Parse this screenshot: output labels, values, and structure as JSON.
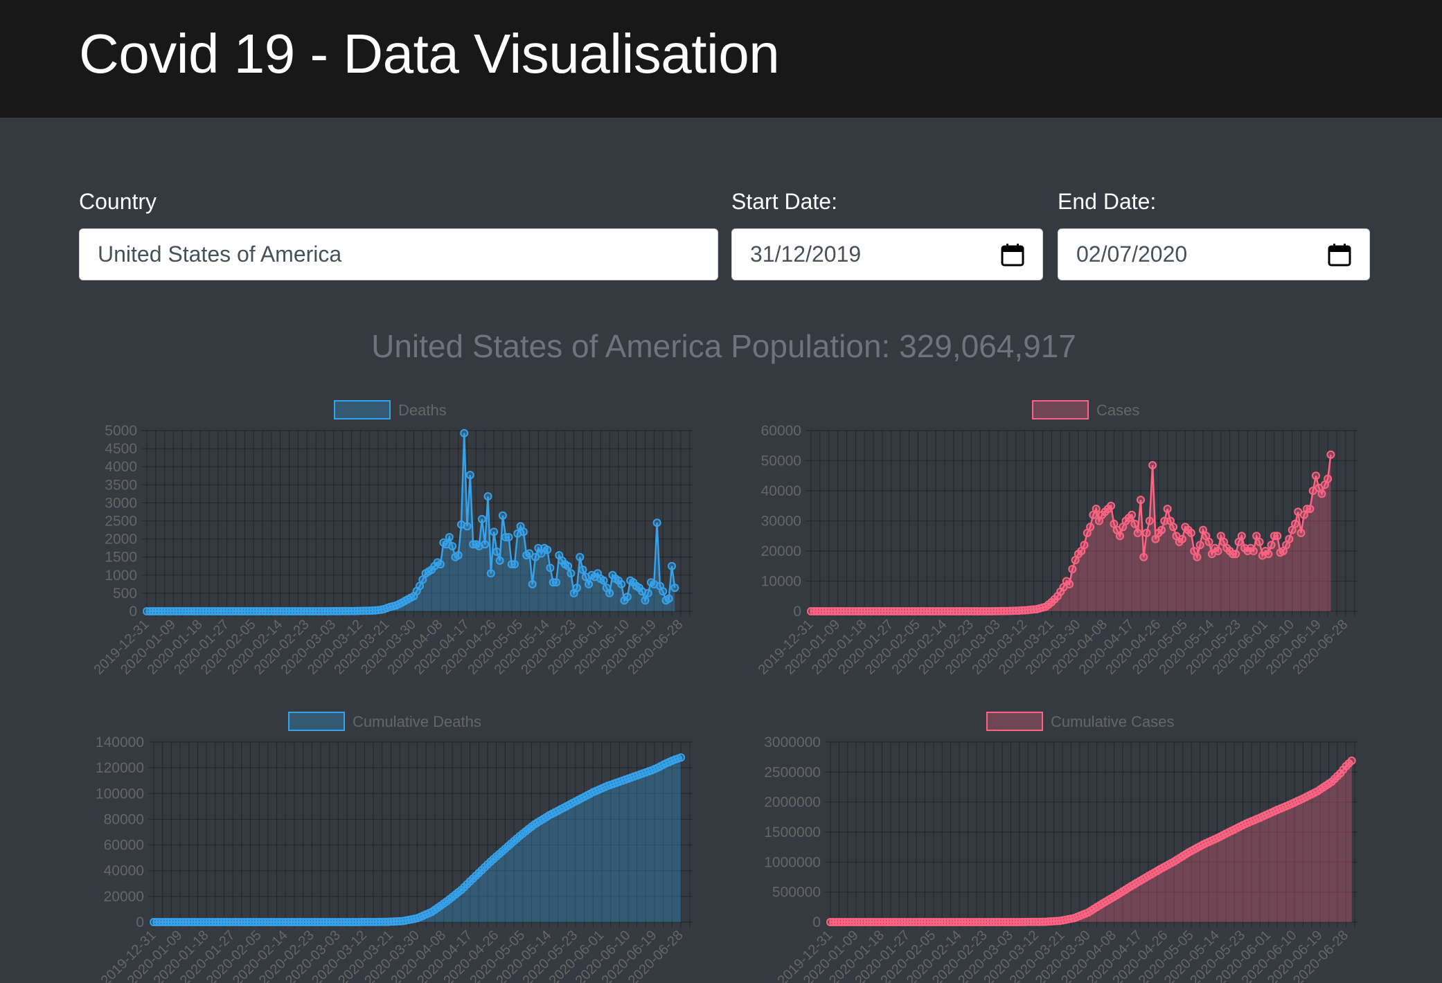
{
  "header": {
    "title": "Covid 19 - Data Visualisation"
  },
  "form": {
    "country_label": "Country",
    "country_value": "United States of America",
    "start_label": "Start Date:",
    "start_value": "31/12/2019",
    "end_label": "End Date:",
    "end_value": "02/07/2020",
    "calendar_icon": "calendar-icon"
  },
  "population_text": "United States of America Population: 329,064,917",
  "colors": {
    "page_bg": "#343a40",
    "navbar_bg": "#181818",
    "deaths": "#36a2eb",
    "cases": "#ff6384",
    "muted_text": "#6c757d"
  },
  "chart_data": [
    {
      "type": "line",
      "legend": "Deaths",
      "color": "#36a2eb",
      "ylim": [
        0,
        5000
      ],
      "yticks": [
        0,
        500,
        1000,
        1500,
        2000,
        2500,
        3000,
        3500,
        4000,
        4500,
        5000
      ],
      "xticks": [
        "2019-12-31",
        "2020-01-09",
        "2020-01-18",
        "2020-01-27",
        "2020-02-05",
        "2020-02-14",
        "2020-02-23",
        "2020-03-03",
        "2020-03-12",
        "2020-03-21",
        "2020-03-30",
        "2020-04-08",
        "2020-04-17",
        "2020-04-26",
        "2020-05-05",
        "2020-05-14",
        "2020-05-23",
        "2020-06-01",
        "2020-06-10",
        "2020-06-19",
        "2020-06-28"
      ],
      "grid": true,
      "fill": true,
      "legend_position": "top",
      "points": [
        [
          "2019-12-31",
          0
        ],
        [
          "2020-02-29",
          0
        ],
        [
          "2020-03-10",
          5
        ],
        [
          "2020-03-15",
          15
        ],
        [
          "2020-03-18",
          30
        ],
        [
          "2020-03-20",
          60
        ],
        [
          "2020-03-22",
          120
        ],
        [
          "2020-03-24",
          160
        ],
        [
          "2020-03-26",
          240
        ],
        [
          "2020-03-28",
          330
        ],
        [
          "2020-03-30",
          420
        ],
        [
          "2020-04-01",
          700
        ],
        [
          "2020-04-03",
          1050
        ],
        [
          "2020-04-05",
          1150
        ],
        [
          "2020-04-07",
          1350
        ],
        [
          "2020-04-08",
          1300
        ],
        [
          "2020-04-09",
          1900
        ],
        [
          "2020-04-10",
          1850
        ],
        [
          "2020-04-11",
          2050
        ],
        [
          "2020-04-12",
          1800
        ],
        [
          "2020-04-13",
          1500
        ],
        [
          "2020-04-14",
          1550
        ],
        [
          "2020-04-15",
          2400
        ],
        [
          "2020-04-16",
          4930
        ],
        [
          "2020-04-17",
          2350
        ],
        [
          "2020-04-18",
          3770
        ],
        [
          "2020-04-19",
          1850
        ],
        [
          "2020-04-20",
          1850
        ],
        [
          "2020-04-21",
          1800
        ],
        [
          "2020-04-22",
          2550
        ],
        [
          "2020-04-23",
          1850
        ],
        [
          "2020-04-24",
          3180
        ],
        [
          "2020-04-25",
          1050
        ],
        [
          "2020-04-26",
          2200
        ],
        [
          "2020-04-27",
          1650
        ],
        [
          "2020-04-28",
          1400
        ],
        [
          "2020-04-29",
          2650
        ],
        [
          "2020-04-30",
          2050
        ],
        [
          "2020-05-01",
          2050
        ],
        [
          "2020-05-02",
          1300
        ],
        [
          "2020-05-03",
          1300
        ],
        [
          "2020-05-04",
          2150
        ],
        [
          "2020-05-05",
          2350
        ],
        [
          "2020-05-06",
          2200
        ],
        [
          "2020-05-07",
          1550
        ],
        [
          "2020-05-08",
          1600
        ],
        [
          "2020-05-09",
          750
        ],
        [
          "2020-05-10",
          1500
        ],
        [
          "2020-05-11",
          1750
        ],
        [
          "2020-05-12",
          1600
        ],
        [
          "2020-05-13",
          1750
        ],
        [
          "2020-05-14",
          1700
        ],
        [
          "2020-05-15",
          1200
        ],
        [
          "2020-05-16",
          800
        ],
        [
          "2020-05-17",
          800
        ],
        [
          "2020-05-18",
          1550
        ],
        [
          "2020-05-19",
          1400
        ],
        [
          "2020-05-20",
          1300
        ],
        [
          "2020-05-21",
          1250
        ],
        [
          "2020-05-22",
          1050
        ],
        [
          "2020-05-23",
          500
        ],
        [
          "2020-05-24",
          650
        ],
        [
          "2020-05-25",
          1500
        ],
        [
          "2020-05-26",
          1150
        ],
        [
          "2020-05-27",
          950
        ],
        [
          "2020-05-28",
          750
        ],
        [
          "2020-05-29",
          1000
        ],
        [
          "2020-05-30",
          950
        ],
        [
          "2020-05-31",
          1050
        ],
        [
          "2020-06-01",
          900
        ],
        [
          "2020-06-02",
          850
        ],
        [
          "2020-06-03",
          650
        ],
        [
          "2020-06-04",
          500
        ],
        [
          "2020-06-05",
          1000
        ],
        [
          "2020-06-06",
          900
        ],
        [
          "2020-06-07",
          850
        ],
        [
          "2020-06-08",
          750
        ],
        [
          "2020-06-09",
          300
        ],
        [
          "2020-06-10",
          400
        ],
        [
          "2020-06-11",
          850
        ],
        [
          "2020-06-12",
          800
        ],
        [
          "2020-06-13",
          700
        ],
        [
          "2020-06-14",
          650
        ],
        [
          "2020-06-15",
          550
        ],
        [
          "2020-06-16",
          300
        ],
        [
          "2020-06-17",
          500
        ],
        [
          "2020-06-18",
          800
        ],
        [
          "2020-06-19",
          750
        ],
        [
          "2020-06-20",
          2450
        ],
        [
          "2020-06-21",
          700
        ],
        [
          "2020-06-22",
          550
        ],
        [
          "2020-06-23",
          300
        ],
        [
          "2020-06-24",
          350
        ],
        [
          "2020-06-25",
          1250
        ],
        [
          "2020-06-26",
          650
        ]
      ]
    },
    {
      "type": "line",
      "legend": "Cases",
      "color": "#ff6384",
      "ylim": [
        0,
        60000
      ],
      "yticks": [
        0,
        10000,
        20000,
        30000,
        40000,
        50000,
        60000
      ],
      "xticks": [
        "2019-12-31",
        "2020-01-09",
        "2020-01-18",
        "2020-01-27",
        "2020-02-05",
        "2020-02-14",
        "2020-02-23",
        "2020-03-03",
        "2020-03-12",
        "2020-03-21",
        "2020-03-30",
        "2020-04-08",
        "2020-04-17",
        "2020-04-26",
        "2020-05-05",
        "2020-05-14",
        "2020-05-23",
        "2020-06-01",
        "2020-06-10",
        "2020-06-19",
        "2020-06-28"
      ],
      "grid": true,
      "fill": true,
      "legend_position": "top",
      "points": [
        [
          "2019-12-31",
          0
        ],
        [
          "2020-02-29",
          0
        ],
        [
          "2020-03-05",
          50
        ],
        [
          "2020-03-10",
          200
        ],
        [
          "2020-03-13",
          400
        ],
        [
          "2020-03-16",
          700
        ],
        [
          "2020-03-19",
          1500
        ],
        [
          "2020-03-21",
          3000
        ],
        [
          "2020-03-23",
          5000
        ],
        [
          "2020-03-25",
          8000
        ],
        [
          "2020-03-26",
          10000
        ],
        [
          "2020-03-27",
          9000
        ],
        [
          "2020-03-28",
          14000
        ],
        [
          "2020-03-29",
          17000
        ],
        [
          "2020-03-30",
          19000
        ],
        [
          "2020-03-31",
          20000
        ],
        [
          "2020-04-01",
          22000
        ],
        [
          "2020-04-02",
          26000
        ],
        [
          "2020-04-03",
          28000
        ],
        [
          "2020-04-04",
          32000
        ],
        [
          "2020-04-05",
          34000
        ],
        [
          "2020-04-06",
          30000
        ],
        [
          "2020-04-07",
          32000
        ],
        [
          "2020-04-08",
          33000
        ],
        [
          "2020-04-09",
          34000
        ],
        [
          "2020-04-10",
          35000
        ],
        [
          "2020-04-11",
          29000
        ],
        [
          "2020-04-12",
          27000
        ],
        [
          "2020-04-13",
          25000
        ],
        [
          "2020-04-14",
          28000
        ],
        [
          "2020-04-15",
          30000
        ],
        [
          "2020-04-16",
          31000
        ],
        [
          "2020-04-17",
          32000
        ],
        [
          "2020-04-18",
          29000
        ],
        [
          "2020-04-19",
          26000
        ],
        [
          "2020-04-20",
          37000
        ],
        [
          "2020-04-21",
          18000
        ],
        [
          "2020-04-22",
          26000
        ],
        [
          "2020-04-23",
          30000
        ],
        [
          "2020-04-24",
          48500
        ],
        [
          "2020-04-25",
          24000
        ],
        [
          "2020-04-26",
          26000
        ],
        [
          "2020-04-27",
          27000
        ],
        [
          "2020-04-28",
          30000
        ],
        [
          "2020-04-29",
          34000
        ],
        [
          "2020-04-30",
          30000
        ],
        [
          "2020-05-01",
          28000
        ],
        [
          "2020-05-02",
          25000
        ],
        [
          "2020-05-03",
          23000
        ],
        [
          "2020-05-04",
          24000
        ],
        [
          "2020-05-05",
          28000
        ],
        [
          "2020-05-06",
          27000
        ],
        [
          "2020-05-07",
          26000
        ],
        [
          "2020-05-08",
          20000
        ],
        [
          "2020-05-09",
          18000
        ],
        [
          "2020-05-10",
          22000
        ],
        [
          "2020-05-11",
          27000
        ],
        [
          "2020-05-12",
          25000
        ],
        [
          "2020-05-13",
          23000
        ],
        [
          "2020-05-14",
          19000
        ],
        [
          "2020-05-15",
          21000
        ],
        [
          "2020-05-16",
          20000
        ],
        [
          "2020-05-17",
          25000
        ],
        [
          "2020-05-18",
          23000
        ],
        [
          "2020-05-19",
          21000
        ],
        [
          "2020-05-20",
          20000
        ],
        [
          "2020-05-21",
          19000
        ],
        [
          "2020-05-22",
          19000
        ],
        [
          "2020-05-23",
          23000
        ],
        [
          "2020-05-24",
          25000
        ],
        [
          "2020-05-25",
          21000
        ],
        [
          "2020-05-26",
          20000
        ],
        [
          "2020-05-27",
          21000
        ],
        [
          "2020-05-28",
          20000
        ],
        [
          "2020-05-29",
          25000
        ],
        [
          "2020-05-30",
          23000
        ],
        [
          "2020-05-31",
          18500
        ],
        [
          "2020-06-01",
          20000
        ],
        [
          "2020-06-02",
          19000
        ],
        [
          "2020-06-03",
          22000
        ],
        [
          "2020-06-04",
          25000
        ],
        [
          "2020-06-05",
          25000
        ],
        [
          "2020-06-06",
          19500
        ],
        [
          "2020-06-07",
          20000
        ],
        [
          "2020-06-08",
          22000
        ],
        [
          "2020-06-09",
          24000
        ],
        [
          "2020-06-10",
          27000
        ],
        [
          "2020-06-11",
          29000
        ],
        [
          "2020-06-12",
          33000
        ],
        [
          "2020-06-13",
          26000
        ],
        [
          "2020-06-14",
          32000
        ],
        [
          "2020-06-15",
          34000
        ],
        [
          "2020-06-16",
          34000
        ],
        [
          "2020-06-17",
          40000
        ],
        [
          "2020-06-18",
          45000
        ],
        [
          "2020-06-19",
          41000
        ],
        [
          "2020-06-20",
          39000
        ],
        [
          "2020-06-21",
          42000
        ],
        [
          "2020-06-22",
          44000
        ],
        [
          "2020-06-23",
          52000
        ]
      ]
    },
    {
      "type": "line",
      "legend": "Cumulative Deaths",
      "color": "#36a2eb",
      "ylim": [
        0,
        140000
      ],
      "yticks": [
        0,
        20000,
        40000,
        60000,
        80000,
        100000,
        120000,
        140000
      ],
      "xticks": [
        "2019-12-31",
        "2020-01-09",
        "2020-01-18",
        "2020-01-27",
        "2020-02-05",
        "2020-02-14",
        "2020-02-23",
        "2020-03-03",
        "2020-03-12",
        "2020-03-21",
        "2020-03-30",
        "2020-04-08",
        "2020-04-17",
        "2020-04-26",
        "2020-05-05",
        "2020-05-14",
        "2020-05-23",
        "2020-06-01",
        "2020-06-10",
        "2020-06-19",
        "2020-06-28"
      ],
      "grid": true,
      "fill": true,
      "legend_position": "top",
      "points": [
        [
          "2019-12-31",
          0
        ],
        [
          "2020-03-05",
          0
        ],
        [
          "2020-03-15",
          50
        ],
        [
          "2020-03-20",
          200
        ],
        [
          "2020-03-25",
          800
        ],
        [
          "2020-03-30",
          3000
        ],
        [
          "2020-04-04",
          8000
        ],
        [
          "2020-04-09",
          16000
        ],
        [
          "2020-04-14",
          25000
        ],
        [
          "2020-04-19",
          36000
        ],
        [
          "2020-04-24",
          47000
        ],
        [
          "2020-04-29",
          57000
        ],
        [
          "2020-05-04",
          67000
        ],
        [
          "2020-05-09",
          76000
        ],
        [
          "2020-05-14",
          83000
        ],
        [
          "2020-05-19",
          89000
        ],
        [
          "2020-05-24",
          95000
        ],
        [
          "2020-05-29",
          101000
        ],
        [
          "2020-06-03",
          106000
        ],
        [
          "2020-06-08",
          110000
        ],
        [
          "2020-06-13",
          114000
        ],
        [
          "2020-06-18",
          118000
        ],
        [
          "2020-06-20",
          120000
        ],
        [
          "2020-06-23",
          123500
        ],
        [
          "2020-06-26",
          126500
        ],
        [
          "2020-06-28",
          128000
        ]
      ]
    },
    {
      "type": "line",
      "legend": "Cumulative Cases",
      "color": "#ff6384",
      "ylim": [
        0,
        3000000
      ],
      "yticks": [
        0,
        500000,
        1000000,
        1500000,
        2000000,
        2500000,
        3000000
      ],
      "xticks": [
        "2019-12-31",
        "2020-01-09",
        "2020-01-18",
        "2020-01-27",
        "2020-02-05",
        "2020-02-14",
        "2020-02-23",
        "2020-03-03",
        "2020-03-12",
        "2020-03-21",
        "2020-03-30",
        "2020-04-08",
        "2020-04-17",
        "2020-04-26",
        "2020-05-05",
        "2020-05-14",
        "2020-05-23",
        "2020-06-01",
        "2020-06-10",
        "2020-06-19",
        "2020-06-28"
      ],
      "grid": true,
      "fill": true,
      "legend_position": "top",
      "points": [
        [
          "2019-12-31",
          0
        ],
        [
          "2020-03-05",
          0
        ],
        [
          "2020-03-15",
          5000
        ],
        [
          "2020-03-20",
          20000
        ],
        [
          "2020-03-25",
          65000
        ],
        [
          "2020-03-30",
          160000
        ],
        [
          "2020-04-04",
          310000
        ],
        [
          "2020-04-09",
          450000
        ],
        [
          "2020-04-14",
          600000
        ],
        [
          "2020-04-19",
          740000
        ],
        [
          "2020-04-24",
          880000
        ],
        [
          "2020-04-29",
          1010000
        ],
        [
          "2020-05-04",
          1160000
        ],
        [
          "2020-05-09",
          1290000
        ],
        [
          "2020-05-14",
          1400000
        ],
        [
          "2020-05-19",
          1520000
        ],
        [
          "2020-05-24",
          1640000
        ],
        [
          "2020-05-29",
          1740000
        ],
        [
          "2020-06-03",
          1850000
        ],
        [
          "2020-06-08",
          1950000
        ],
        [
          "2020-06-13",
          2060000
        ],
        [
          "2020-06-18",
          2180000
        ],
        [
          "2020-06-23",
          2340000
        ],
        [
          "2020-06-26",
          2480000
        ],
        [
          "2020-06-28",
          2600000
        ],
        [
          "2020-06-30",
          2690000
        ]
      ]
    }
  ]
}
